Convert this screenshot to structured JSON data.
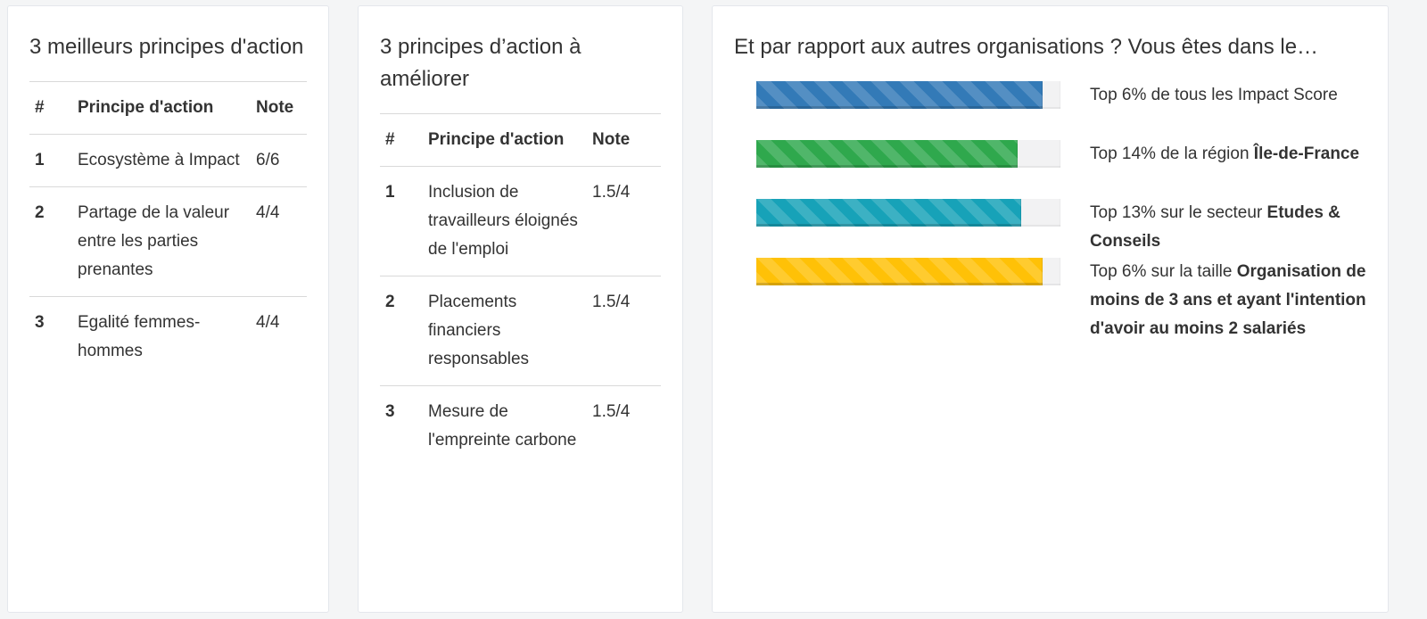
{
  "page": {
    "background": "#f4f5f6"
  },
  "cards": {
    "best": {
      "title": "3 meilleurs principes d'action",
      "table": {
        "headers": {
          "num": "#",
          "principle": "Principe d'action",
          "note": "Note"
        },
        "rows": [
          {
            "num": "1",
            "principle": "Ecosystème à Impact",
            "note": "6/6"
          },
          {
            "num": "2",
            "principle": "Partage de la valeur entre les parties prenantes",
            "note": "4/4"
          },
          {
            "num": "3",
            "principle": "Egalité femmes-hommes",
            "note": "4/4"
          }
        ]
      }
    },
    "improve": {
      "title": "3 principes d’action à améliorer",
      "table": {
        "headers": {
          "num": "#",
          "principle": "Principe d'action",
          "note": "Note"
        },
        "rows": [
          {
            "num": "1",
            "principle": "Inclusion de travailleurs éloignés de l'emploi",
            "note": "1.5/4"
          },
          {
            "num": "2",
            "principle": "Placements financiers responsables",
            "note": "1.5/4"
          },
          {
            "num": "3",
            "principle": "Mesure de l'empreinte carbone",
            "note": "1.5/4"
          }
        ]
      }
    },
    "comparison": {
      "title": "Et par rapport aux autres organisations ? Vous êtes dans le…",
      "track_color": "#f2f2f3",
      "bars": [
        {
          "name": "impact-score",
          "color": "#337ab7",
          "fill_percent": 94,
          "text": "Top 6% de tous les Impact Score",
          "bold": ""
        },
        {
          "name": "region",
          "color": "#2fa84d",
          "fill_percent": 86,
          "text": "Top 14% de la région ",
          "bold": "Île-de-France"
        },
        {
          "name": "secteur",
          "color": "#17a2b8",
          "fill_percent": 87,
          "text": "Top 13% sur le secteur ",
          "bold": "Etudes & Conseils"
        },
        {
          "name": "taille",
          "color": "#ffc107",
          "fill_percent": 94,
          "text": "Top 6% sur la taille ",
          "bold": "Organisation de moins de 3 ans et ayant l'intention d'avoir au moins 2 salariés"
        }
      ]
    }
  },
  "chart_data": [
    {
      "type": "table",
      "title": "3 meilleurs principes d'action",
      "columns": [
        "#",
        "Principe d'action",
        "Note"
      ],
      "rows": [
        [
          "1",
          "Ecosystème à Impact",
          "6/6"
        ],
        [
          "2",
          "Partage de la valeur entre les parties prenantes",
          "4/4"
        ],
        [
          "3",
          "Egalité femmes-hommes",
          "4/4"
        ]
      ]
    },
    {
      "type": "table",
      "title": "3 principes d’action à améliorer",
      "columns": [
        "#",
        "Principe d'action",
        "Note"
      ],
      "rows": [
        [
          "1",
          "Inclusion de travailleurs éloignés de l'emploi",
          "1.5/4"
        ],
        [
          "2",
          "Placements financiers responsables",
          "1.5/4"
        ],
        [
          "3",
          "Mesure de l'empreinte carbone",
          "1.5/4"
        ]
      ]
    },
    {
      "type": "bar",
      "orientation": "horizontal",
      "title": "Et par rapport aux autres organisations ? Vous êtes dans le…",
      "categories": [
        "Top 6% de tous les Impact Score",
        "Top 14% de la région Île-de-France",
        "Top 13% sur le secteur Etudes & Conseils",
        "Top 6% sur la taille Organisation de moins de 3 ans et ayant l'intention d'avoir au moins 2 salariés"
      ],
      "top_percent": [
        6,
        14,
        13,
        6
      ],
      "values": [
        94,
        86,
        87,
        94
      ],
      "xlim": [
        0,
        100
      ],
      "colors": [
        "#337ab7",
        "#2fa84d",
        "#17a2b8",
        "#ffc107"
      ],
      "bar_style": "striped",
      "legend": "none",
      "grid": false
    }
  ]
}
